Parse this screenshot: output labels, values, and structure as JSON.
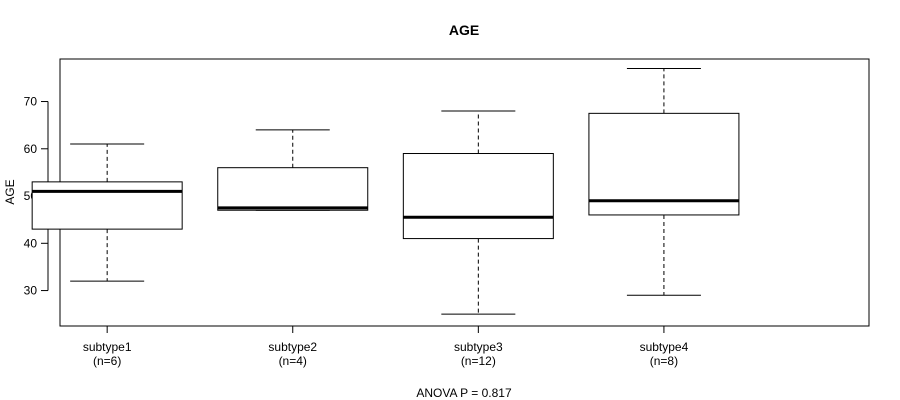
{
  "chart_data": {
    "type": "boxplot",
    "title": "AGE",
    "ylabel": "AGE",
    "xlabel": "",
    "ylim": [
      22.5,
      79
    ],
    "yticks": [
      30,
      40,
      50,
      60,
      70
    ],
    "grid": false,
    "categories": [
      "subtype1",
      "subtype2",
      "subtype3",
      "subtype4"
    ],
    "counts": [
      "(n=6)",
      "(n=4)",
      "(n=12)",
      "(n=8)"
    ],
    "boxes": [
      {
        "min": 32,
        "q1": 43,
        "median": 51,
        "q3": 53,
        "max": 61
      },
      {
        "min": 47,
        "q1": 47,
        "median": 47.5,
        "q3": 56,
        "max": 64
      },
      {
        "min": 25,
        "q1": 41,
        "median": 45.5,
        "q3": 59,
        "max": 68
      },
      {
        "min": 29,
        "q1": 46,
        "median": 49,
        "q3": 67.5,
        "max": 77
      }
    ],
    "footer": "ANOVA P = 0.817"
  }
}
